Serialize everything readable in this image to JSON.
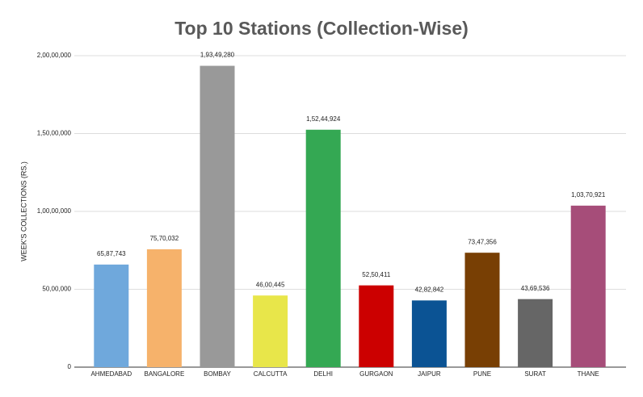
{
  "chart_data": {
    "type": "bar",
    "title": "Top 10 Stations (Collection-Wise)",
    "y_label": "WEEK'S COLLECTIONS (RS.)",
    "categories": [
      "AHMEDABAD",
      "BANGALORE",
      "BOMBAY",
      "CALCUTTA",
      "DELHI",
      "GURGAON",
      "JAIPUR",
      "PUNE",
      "SURAT",
      "THANE"
    ],
    "values": [
      6587743,
      7570032,
      19349280,
      4600445,
      15244924,
      5250411,
      4282842,
      7347356,
      4369536,
      10370921
    ],
    "value_labels": [
      "65,87,743",
      "75,70,032",
      "1,93,49,280",
      "46,00,445",
      "1,52,44,924",
      "52,50,411",
      "42,82,842",
      "73,47,356",
      "43,69,536",
      "1,03,70,921"
    ],
    "colors": [
      "#6fa8dc",
      "#f6b26b",
      "#999999",
      "#e8e64a",
      "#34a853",
      "#cc0000",
      "#0b5394",
      "#783f04",
      "#666666",
      "#a64d79"
    ],
    "ylim": [
      0,
      20000000
    ],
    "yticks": [
      0,
      {
        "value": 5000000,
        "label": "50,00,000"
      },
      {
        "value": 10000000,
        "label": "1,00,00,000"
      },
      {
        "value": 15000000,
        "label": "1,50,00,000"
      },
      {
        "value": 20000000,
        "label": "2,00,00,000"
      }
    ],
    "grid": true
  }
}
